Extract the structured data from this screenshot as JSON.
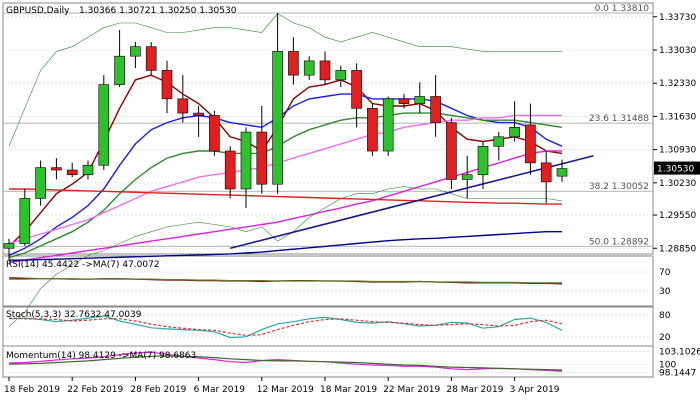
{
  "chart_data": [
    {
      "type": "candlestick",
      "symbol_label": "GBPUSD,Daily",
      "ohlc_label": "1.30366 1.30721 1.30250 1.30530",
      "current_price_label": "1.30530",
      "ylim": [
        1.2875,
        1.34
      ],
      "price_ticks": [
        {
          "value": 1.3373,
          "label": "1.33730"
        },
        {
          "value": 1.3303,
          "label": "1.33030"
        },
        {
          "value": 1.3233,
          "label": "1.32330"
        },
        {
          "value": 1.3163,
          "label": "1.31630"
        },
        {
          "value": 1.3093,
          "label": "1.30930"
        },
        {
          "value": 1.3023,
          "label": "1.30230"
        },
        {
          "value": 1.2955,
          "label": "1.29550"
        },
        {
          "value": 1.2885,
          "label": "1.28850"
        }
      ],
      "date_labels": [
        {
          "index": 0,
          "label": "18 Feb 2019"
        },
        {
          "index": 4,
          "label": "22 Feb 2019"
        },
        {
          "index": 8,
          "label": "28 Feb 2019"
        },
        {
          "index": 12,
          "label": "6 Mar 2019"
        },
        {
          "index": 16,
          "label": "12 Mar 2019"
        },
        {
          "index": 20,
          "label": "18 Mar 2019"
        },
        {
          "index": 24,
          "label": "22 Mar 2019"
        },
        {
          "index": 28,
          "label": "28 Mar 2019"
        },
        {
          "index": 32,
          "label": "3 Apr 2019"
        }
      ],
      "candles": [
        {
          "o": 1.2885,
          "h": 1.2905,
          "l": 1.286,
          "c": 1.2895
        },
        {
          "o": 1.2895,
          "h": 1.301,
          "l": 1.289,
          "c": 1.299
        },
        {
          "o": 1.299,
          "h": 1.307,
          "l": 1.2975,
          "c": 1.3055
        },
        {
          "o": 1.3055,
          "h": 1.3075,
          "l": 1.303,
          "c": 1.305
        },
        {
          "o": 1.305,
          "h": 1.3065,
          "l": 1.3035,
          "c": 1.304
        },
        {
          "o": 1.304,
          "h": 1.307,
          "l": 1.303,
          "c": 1.306
        },
        {
          "o": 1.306,
          "h": 1.325,
          "l": 1.305,
          "c": 1.323
        },
        {
          "o": 1.323,
          "h": 1.3345,
          "l": 1.3225,
          "c": 1.329
        },
        {
          "o": 1.329,
          "h": 1.332,
          "l": 1.3265,
          "c": 1.331
        },
        {
          "o": 1.331,
          "h": 1.332,
          "l": 1.325,
          "c": 1.326
        },
        {
          "o": 1.326,
          "h": 1.328,
          "l": 1.317,
          "c": 1.32
        },
        {
          "o": 1.32,
          "h": 1.325,
          "l": 1.315,
          "c": 1.317
        },
        {
          "o": 1.317,
          "h": 1.3185,
          "l": 1.312,
          "c": 1.3165
        },
        {
          "o": 1.3165,
          "h": 1.3175,
          "l": 1.308,
          "c": 1.309
        },
        {
          "o": 1.309,
          "h": 1.31,
          "l": 1.299,
          "c": 1.301
        },
        {
          "o": 1.301,
          "h": 1.314,
          "l": 1.297,
          "c": 1.313
        },
        {
          "o": 1.313,
          "h": 1.3185,
          "l": 1.3,
          "c": 1.302
        },
        {
          "o": 1.302,
          "h": 1.3381,
          "l": 1.3,
          "c": 1.33
        },
        {
          "o": 1.33,
          "h": 1.333,
          "l": 1.323,
          "c": 1.325
        },
        {
          "o": 1.325,
          "h": 1.329,
          "l": 1.324,
          "c": 1.328
        },
        {
          "o": 1.328,
          "h": 1.33,
          "l": 1.323,
          "c": 1.324
        },
        {
          "o": 1.324,
          "h": 1.327,
          "l": 1.3225,
          "c": 1.326
        },
        {
          "o": 1.326,
          "h": 1.3275,
          "l": 1.314,
          "c": 1.318
        },
        {
          "o": 1.318,
          "h": 1.319,
          "l": 1.308,
          "c": 1.309
        },
        {
          "o": 1.309,
          "h": 1.3205,
          "l": 1.308,
          "c": 1.32
        },
        {
          "o": 1.32,
          "h": 1.321,
          "l": 1.318,
          "c": 1.319
        },
        {
          "o": 1.319,
          "h": 1.3235,
          "l": 1.317,
          "c": 1.3205
        },
        {
          "o": 1.3205,
          "h": 1.325,
          "l": 1.312,
          "c": 1.315
        },
        {
          "o": 1.315,
          "h": 1.316,
          "l": 1.301,
          "c": 1.303
        },
        {
          "o": 1.303,
          "h": 1.308,
          "l": 1.299,
          "c": 1.304
        },
        {
          "o": 1.304,
          "h": 1.311,
          "l": 1.301,
          "c": 1.31
        },
        {
          "o": 1.31,
          "h": 1.313,
          "l": 1.307,
          "c": 1.312
        },
        {
          "o": 1.312,
          "h": 1.3195,
          "l": 1.311,
          "c": 1.314
        },
        {
          "o": 1.3145,
          "h": 1.319,
          "l": 1.304,
          "c": 1.3065
        },
        {
          "o": 1.3065,
          "h": 1.309,
          "l": 1.298,
          "c": 1.3025
        },
        {
          "o": 1.3037,
          "h": 1.3072,
          "l": 1.3025,
          "c": 1.3053
        }
      ],
      "fib_levels": [
        {
          "value": 1.3381,
          "label": "0.0 1.33810"
        },
        {
          "value": 1.31488,
          "label": "23.6 1.31488"
        },
        {
          "value": 1.30052,
          "label": "38.2 1.30052"
        },
        {
          "value": 1.28892,
          "label": "50.0 1.28892"
        }
      ],
      "trendline": {
        "start_index": 14,
        "start_value": 1.2885,
        "end_index": 37,
        "end_value": 1.308,
        "color": "#1a1a8c"
      },
      "overlays": [
        {
          "color": "#8b0000",
          "values": [
            1.289,
            1.292,
            1.296,
            1.3,
            1.302,
            1.3045,
            1.311,
            1.318,
            1.324,
            1.325,
            1.3235,
            1.321,
            1.319,
            1.316,
            1.312,
            1.311,
            1.309,
            1.314,
            1.32,
            1.3225,
            1.323,
            1.324,
            1.3225,
            1.319,
            1.3185,
            1.3185,
            1.319,
            1.3175,
            1.314,
            1.3115,
            1.311,
            1.3115,
            1.312,
            1.311,
            1.309,
            1.3085
          ]
        },
        {
          "color": "#1e1ee8",
          "values": [
            1.287,
            1.2885,
            1.2905,
            1.293,
            1.295,
            1.2975,
            1.301,
            1.306,
            1.3105,
            1.3135,
            1.315,
            1.316,
            1.3165,
            1.316,
            1.315,
            1.3145,
            1.314,
            1.316,
            1.3185,
            1.32,
            1.3205,
            1.321,
            1.321,
            1.32,
            1.32,
            1.32,
            1.32,
            1.3195,
            1.318,
            1.3165,
            1.3155,
            1.315,
            1.315,
            1.314,
            1.3115,
            1.31
          ]
        },
        {
          "color": "#2e8b2e",
          "values": [
            1.2865,
            1.2875,
            1.289,
            1.2905,
            1.292,
            1.294,
            1.2965,
            1.3,
            1.303,
            1.3055,
            1.3075,
            1.3085,
            1.309,
            1.309,
            1.3085,
            1.3085,
            1.3085,
            1.31,
            1.312,
            1.3135,
            1.3145,
            1.3155,
            1.316,
            1.316,
            1.3165,
            1.317,
            1.317,
            1.317,
            1.3165,
            1.316,
            1.3155,
            1.3155,
            1.3155,
            1.315,
            1.3145,
            1.314
          ]
        },
        {
          "color": "#ee6eee",
          "values": [
            1.2895,
            1.2905,
            1.2915,
            1.2925,
            1.2935,
            1.2945,
            1.296,
            1.2975,
            1.299,
            1.3005,
            1.3015,
            1.3025,
            1.3035,
            1.304,
            1.3045,
            1.305,
            1.3055,
            1.3065,
            1.3075,
            1.3085,
            1.3095,
            1.3105,
            1.3115,
            1.3125,
            1.313,
            1.314,
            1.3145,
            1.315,
            1.3155,
            1.3155,
            1.316,
            1.316,
            1.3165,
            1.3165,
            1.3165,
            1.3165
          ]
        },
        {
          "color": "#dd22dd",
          "values": [
            1.2855,
            1.286,
            1.2865,
            1.287,
            1.2875,
            1.288,
            1.2885,
            1.289,
            1.2895,
            1.29,
            1.2905,
            1.291,
            1.2915,
            1.292,
            1.2925,
            1.293,
            1.2935,
            1.294,
            1.2948,
            1.2955,
            1.2963,
            1.297,
            1.2978,
            1.2985,
            1.2995,
            1.3005,
            1.3015,
            1.3025,
            1.3035,
            1.3045,
            1.3055,
            1.3065,
            1.3075,
            1.3085,
            1.309,
            1.309
          ]
        },
        {
          "color": "#e02020",
          "values": [
            1.301,
            1.301,
            1.3009,
            1.3008,
            1.3007,
            1.3006,
            1.3005,
            1.3004,
            1.3003,
            1.3002,
            1.3001,
            1.3,
            1.2999,
            1.2998,
            1.2997,
            1.2996,
            1.2995,
            1.2994,
            1.2993,
            1.2992,
            1.2991,
            1.299,
            1.2989,
            1.2988,
            1.2987,
            1.2986,
            1.2985,
            1.2984,
            1.2983,
            1.2982,
            1.2981,
            1.298,
            1.298,
            1.2979,
            1.2978,
            1.2978
          ]
        },
        {
          "color": "#00008b",
          "values": [
            1.286,
            1.286,
            1.2861,
            1.2862,
            1.2863,
            1.2864,
            1.2865,
            1.2866,
            1.2867,
            1.2868,
            1.2869,
            1.287,
            1.2871,
            1.2872,
            1.2873,
            1.2875,
            1.2877,
            1.288,
            1.2883,
            1.2886,
            1.2889,
            1.2892,
            1.2895,
            1.2898,
            1.2901,
            1.2903,
            1.2905,
            1.2906,
            1.2908,
            1.291,
            1.2912,
            1.2914,
            1.2916,
            1.2918,
            1.292,
            1.292
          ]
        },
        {
          "color": "#2e8b2e",
          "width": 0.6,
          "values": [
            1.31,
            1.318,
            1.326,
            1.33,
            1.331,
            1.333,
            1.335,
            1.336,
            1.336,
            1.335,
            1.334,
            1.334,
            1.3345,
            1.335,
            1.335,
            1.3345,
            1.334,
            1.338,
            1.336,
            1.335,
            1.333,
            1.332,
            1.333,
            1.334,
            1.333,
            1.332,
            1.331,
            1.331,
            1.331,
            1.3305,
            1.33,
            1.33,
            1.33,
            1.33,
            1.33,
            1.33
          ]
        },
        {
          "color": "#2e8b2e",
          "width": 0.6,
          "values": [
            1.272,
            1.275,
            1.28,
            1.283,
            1.285,
            1.287,
            1.288,
            1.2895,
            1.291,
            1.292,
            1.293,
            1.2935,
            1.294,
            1.2935,
            1.293,
            1.292,
            1.293,
            1.29,
            1.292,
            1.295,
            1.297,
            1.299,
            1.3,
            1.3,
            1.301,
            1.3015,
            1.301,
            1.301,
            1.3,
            1.299,
            1.299,
            1.299,
            1.299,
            1.299,
            1.299,
            1.2985
          ]
        }
      ]
    },
    {
      "type": "line",
      "label": "RSI(14) 45.4422  ->MA(7) 47.0072",
      "ylim": [
        0,
        100
      ],
      "ticks": [
        {
          "value": 70,
          "label": "70"
        },
        {
          "value": 30,
          "label": "30"
        }
      ],
      "current_value": 45.4422,
      "series": [
        {
          "color": "#8b0000",
          "values": [
            58,
            57,
            56,
            56,
            55,
            55,
            56,
            56,
            55,
            54,
            53,
            53,
            52,
            52,
            51,
            51,
            50,
            51,
            52,
            52,
            51,
            51,
            50,
            49,
            49,
            49,
            50,
            49,
            48,
            47,
            47,
            47,
            47,
            46,
            46,
            45
          ]
        },
        {
          "color": "#5a7a2a",
          "values": [
            55,
            55,
            56,
            56,
            56,
            55,
            55,
            55,
            55,
            55,
            54,
            54,
            53,
            53,
            52,
            52,
            52,
            51,
            51,
            51,
            51,
            51,
            51,
            50,
            50,
            50,
            50,
            49,
            49,
            49,
            48,
            48,
            48,
            47,
            47,
            47
          ]
        }
      ]
    },
    {
      "type": "line",
      "label": "Stoch(5,3,3) 32.7632 47.0039",
      "ylim": [
        0,
        100
      ],
      "ticks": [
        {
          "value": 80,
          "label": "80"
        },
        {
          "value": 20,
          "label": "20"
        }
      ],
      "current_value": 47.0039,
      "series": [
        {
          "color": "#2aa8a8",
          "values": [
            70,
            72,
            68,
            62,
            66,
            72,
            78,
            64,
            55,
            45,
            42,
            40,
            38,
            34,
            18,
            20,
            40,
            56,
            62,
            70,
            74,
            68,
            60,
            58,
            62,
            56,
            50,
            52,
            60,
            58,
            44,
            48,
            68,
            72,
            60,
            38
          ]
        },
        {
          "color": "#e03030",
          "dashed": true,
          "values": [
            72,
            70,
            70,
            68,
            64,
            66,
            70,
            70,
            64,
            55,
            48,
            44,
            40,
            38,
            30,
            24,
            26,
            40,
            52,
            62,
            68,
            70,
            66,
            62,
            60,
            58,
            54,
            52,
            54,
            56,
            54,
            50,
            52,
            62,
            66,
            56
          ]
        }
      ]
    },
    {
      "type": "line",
      "label": "Momentum(14) 98.4129  ->MA(7) 98.6863",
      "ylim": [
        97.5,
        104.0
      ],
      "ticks": [
        {
          "value": 103.1026,
          "label": "103.1026"
        },
        {
          "value": 100,
          "label": "100"
        },
        {
          "value": 98.1447,
          "label": "98.1447"
        }
      ],
      "current_value": 98.4129,
      "series": [
        {
          "color": "#e020e0",
          "values": [
            100.4,
            100.5,
            100.8,
            101.1,
            101.4,
            101.6,
            101.9,
            102.4,
            102.8,
            103.0,
            102.5,
            102.0,
            101.6,
            101.2,
            100.7,
            100.5,
            101.0,
            101.2,
            101.0,
            100.8,
            100.7,
            100.4,
            100.1,
            99.9,
            99.8,
            99.6,
            99.6,
            99.4,
            99.0,
            98.8,
            99.0,
            99.1,
            99.0,
            98.8,
            98.6,
            98.4
          ]
        },
        {
          "color": "#3a6a2a",
          "values": [
            100.1,
            100.2,
            100.3,
            100.5,
            100.7,
            100.9,
            101.2,
            101.5,
            101.8,
            102.0,
            102.1,
            102.0,
            101.9,
            101.7,
            101.4,
            101.2,
            101.0,
            100.9,
            100.9,
            100.8,
            100.7,
            100.6,
            100.5,
            100.3,
            100.1,
            99.9,
            99.8,
            99.6,
            99.4,
            99.3,
            99.2,
            99.1,
            99.0,
            98.9,
            98.8,
            98.7
          ]
        }
      ]
    }
  ],
  "colors": {
    "bull": "#2fbf2f",
    "bear": "#e02020",
    "background": "#ffffff",
    "grid": "#cfcfcf",
    "current_price_box": "#000000"
  }
}
